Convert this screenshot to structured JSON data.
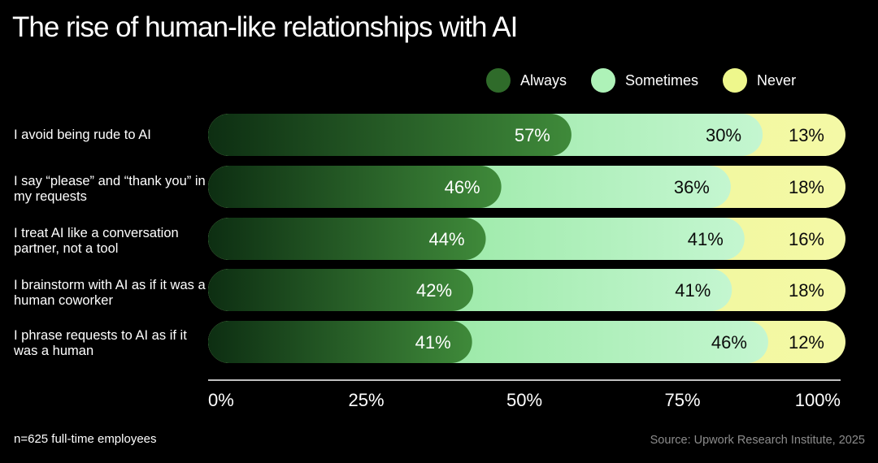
{
  "title": "The rise of human-like relationships with AI",
  "legend": [
    {
      "label": "Always",
      "color": "#2f6b2a"
    },
    {
      "label": "Sometimes",
      "color": "#aef2b8"
    },
    {
      "label": "Never",
      "color": "#eef78c"
    }
  ],
  "chart_data": {
    "type": "bar",
    "orientation": "horizontal",
    "stacked": true,
    "categories": [
      "I avoid being rude to AI",
      "I say “please” and “thank you” in my requests",
      "I treat AI like a conversation partner, not a tool",
      "I brainstorm with AI as if it was a human coworker",
      "I phrase requests to AI as if it was a human"
    ],
    "series": [
      {
        "name": "Always",
        "values": [
          57,
          46,
          44,
          42,
          41
        ]
      },
      {
        "name": "Sometimes",
        "values": [
          30,
          36,
          41,
          41,
          46
        ]
      },
      {
        "name": "Never",
        "values": [
          13,
          18,
          16,
          18,
          12
        ]
      }
    ],
    "x_ticks": [
      "0%",
      "25%",
      "50%",
      "75%",
      "100%"
    ],
    "xlim": [
      0,
      100
    ],
    "legend_position": "top-right"
  },
  "row_labels": [
    "I avoid being rude to AI",
    "I say “please” and “thank you” in my requests",
    "I treat AI like a conversation partner, not a tool",
    "I brainstorm with AI as if it was a human coworker",
    "I phrase requests to AI as if it was a human"
  ],
  "footer": {
    "note": "n=625 full-time employees",
    "source": "Source: Upwork Research Institute, 2025"
  }
}
